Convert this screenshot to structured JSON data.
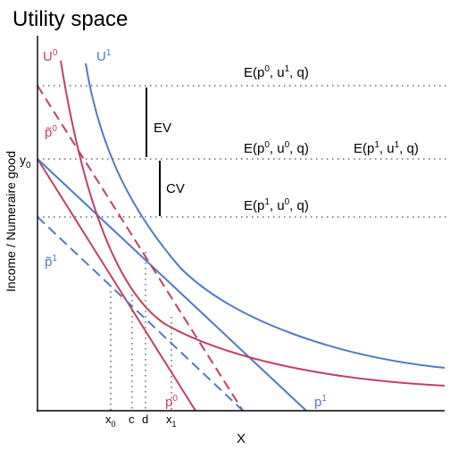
{
  "title": "Utility space",
  "axes": {
    "xlabel": "X",
    "ylabel": "Income / Numeraire good"
  },
  "colors": {
    "red": "#c0415f",
    "blue": "#4f79c4",
    "axis": "#000000",
    "guide": "#7f7f7f"
  },
  "curves": {
    "U0": {
      "base": "U",
      "sup": "0",
      "color": "#c0415f"
    },
    "U1": {
      "base": "U",
      "sup": "1",
      "color": "#4f79c4"
    },
    "p0": {
      "base": "p",
      "sup": "0",
      "color": "#c0415f"
    },
    "p1": {
      "base": "p",
      "sup": "1",
      "color": "#4f79c4"
    },
    "p0_tilde": {
      "base": "p̃",
      "sup": "0",
      "color": "#c0415f"
    },
    "p1_tilde": {
      "base": "p̃",
      "sup": "1",
      "color": "#4f79c4"
    }
  },
  "y_label": {
    "base": "y",
    "sub": "0"
  },
  "measures": {
    "ev": "EV",
    "cv": "CV"
  },
  "expenditure_labels": {
    "e_p0_u1": {
      "pre": "E(p",
      "p_sup": "0",
      "mid": ", u",
      "u_sup": "1",
      "post": ", q)"
    },
    "e_p0_u0": {
      "pre": "E(p",
      "p_sup": "0",
      "mid": ", u",
      "u_sup": "0",
      "post": ", q)"
    },
    "e_p1_u1": {
      "pre": "E(p",
      "p_sup": "1",
      "mid": ", u",
      "u_sup": "1",
      "post": ", q)"
    },
    "e_p1_u0": {
      "pre": "E(p",
      "p_sup": "1",
      "mid": ", u",
      "u_sup": "0",
      "post": ", q)"
    }
  },
  "x_ticks": {
    "x0": {
      "base": "x",
      "sub": "0"
    },
    "c": {
      "base": "c"
    },
    "d": {
      "base": "d"
    },
    "x1": {
      "base": "x",
      "sub": "1"
    }
  }
}
